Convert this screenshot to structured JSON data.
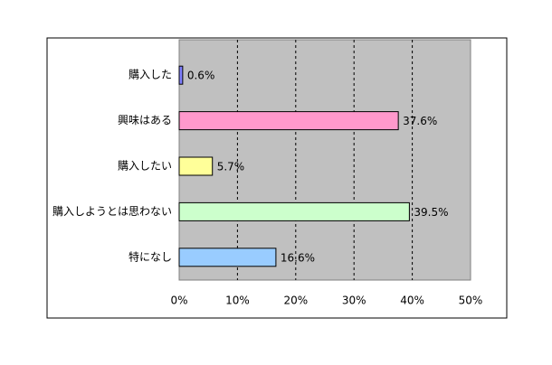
{
  "chart_data": {
    "type": "bar",
    "orientation": "horizontal",
    "categories": [
      "購入した",
      "興味はある",
      "購入したい",
      "購入しようとは思わない",
      "特になし"
    ],
    "values": [
      0.6,
      37.6,
      5.7,
      39.5,
      16.6
    ],
    "value_labels": [
      "0.6%",
      "37.6%",
      "5.7%",
      "39.5%",
      "16.6%"
    ],
    "colors": [
      "#8080ff",
      "#ff99cc",
      "#ffff99",
      "#ccffcc",
      "#99ccff"
    ],
    "xlim": [
      0,
      50
    ],
    "xticks": [
      {
        "value": 0,
        "label": "0%"
      },
      {
        "value": 10,
        "label": "10%"
      },
      {
        "value": 20,
        "label": "20%"
      },
      {
        "value": 30,
        "label": "30%"
      },
      {
        "value": 40,
        "label": "40%"
      },
      {
        "value": 50,
        "label": "50%"
      }
    ],
    "grid": true
  }
}
